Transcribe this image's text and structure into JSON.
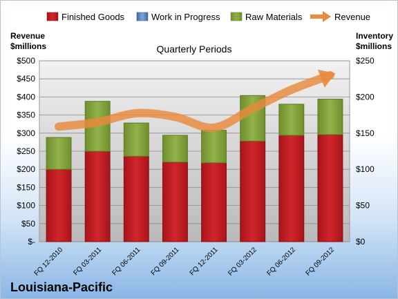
{
  "chart_data": {
    "type": "bar",
    "title": "Quarterly Periods",
    "footer": "Louisiana-Pacific",
    "categories": [
      "FQ 12-2010",
      "FQ 03-2011",
      "FQ 06-2011",
      "FQ 09-2011",
      "FQ 12-2011",
      "FQ 03-2012",
      "FQ 06-2012",
      "FQ 09-2012"
    ],
    "left_axis": {
      "label_line1": "Revenue",
      "label_line2": "$millions",
      "range": [
        0,
        500
      ],
      "ticks": [
        0,
        50,
        100,
        150,
        200,
        250,
        300,
        350,
        400,
        450,
        500
      ],
      "tick_labels": [
        "$-",
        "$50",
        "$100",
        "$150",
        "$200",
        "$250",
        "$300",
        "$350",
        "$400",
        "$450",
        "$500"
      ]
    },
    "right_axis": {
      "label_line1": "Inventory",
      "label_line2": "$millions",
      "range": [
        0,
        250
      ],
      "ticks": [
        0,
        50,
        100,
        150,
        200,
        250
      ],
      "tick_labels": [
        "$0",
        "$50",
        "$100",
        "$150",
        "$200",
        "$250"
      ]
    },
    "series": [
      {
        "name": "Finished Goods",
        "kind": "stacked-bar",
        "axis": "right",
        "color": "#c0181e",
        "values": [
          100,
          125,
          118,
          110,
          109,
          139,
          147,
          148
        ]
      },
      {
        "name": "Work in Progress",
        "kind": "stacked-bar",
        "axis": "right",
        "color": "#4f81bd",
        "values": [
          0,
          0,
          0,
          0,
          0,
          0,
          0,
          0
        ]
      },
      {
        "name": "Raw Materials",
        "kind": "stacked-bar",
        "axis": "right",
        "color": "#8aab3e",
        "values": [
          44,
          69,
          46,
          37,
          45,
          63,
          43,
          49
        ]
      },
      {
        "name": "Revenue",
        "kind": "line",
        "axis": "left",
        "color": "#e98a3c",
        "values": [
          318,
          330,
          355,
          345,
          315,
          368,
          420,
          460
        ]
      }
    ],
    "grid": true,
    "legend_position": "top"
  }
}
